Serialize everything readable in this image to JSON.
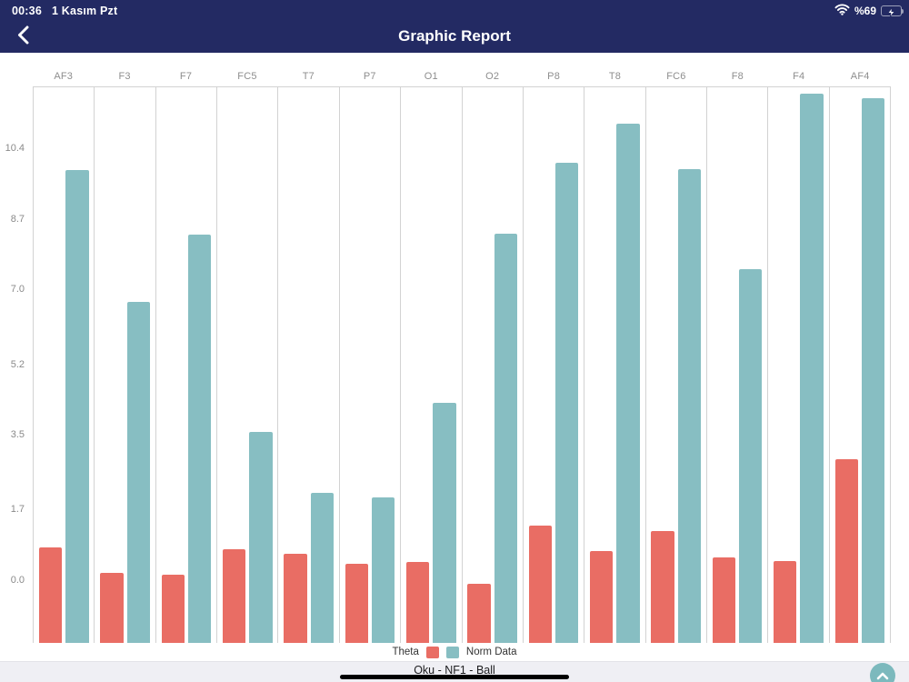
{
  "status_bar": {
    "time": "00:36",
    "date": "1 Kasım Pzt",
    "battery_percent": "%69"
  },
  "nav": {
    "title": "Graphic Report"
  },
  "chart_data": {
    "type": "bar",
    "categories": [
      "AF3",
      "F3",
      "F7",
      "FC5",
      "T7",
      "P7",
      "O1",
      "O2",
      "P8",
      "T8",
      "FC6",
      "F8",
      "F4",
      "AF4"
    ],
    "series": [
      {
        "name": "Theta",
        "color": "#e96d64",
        "values": [
          0.79,
          0.18,
          0.13,
          0.74,
          0.63,
          0.39,
          0.44,
          -0.09,
          1.31,
          0.7,
          1.18,
          0.55,
          0.46,
          2.93
        ]
      },
      {
        "name": "Norm Data",
        "color": "#87bec2",
        "values": [
          9.9,
          6.72,
          8.34,
          3.57,
          2.1,
          2.01,
          4.27,
          8.36,
          10.07,
          11.01,
          9.92,
          7.51,
          11.74,
          11.63
        ]
      }
    ],
    "yticks": [
      10.4,
      8.7,
      7.0,
      5.2,
      3.5,
      1.7,
      0.0
    ],
    "ytick_labels": [
      "10.4",
      "8.7",
      "7.0",
      "5.2",
      "3.5",
      "1.7",
      "0.0"
    ],
    "ylim": [
      -1.51,
      11.89
    ],
    "grid": "vertical-column-separators",
    "legend_position": "bottom",
    "plot_background": "#ffffff",
    "separator_color": "#d2d2d2"
  },
  "footer": {
    "title": "Oku - NF1 - Ball"
  },
  "colors": {
    "navbar": "#232a63",
    "battery_green": "#32d74b",
    "scroll_button": "#7cb9bd"
  },
  "icons": {
    "back": "chevron-left",
    "wifi": "wifi",
    "battery": "battery-charging",
    "scroll_top": "chevron-up"
  }
}
